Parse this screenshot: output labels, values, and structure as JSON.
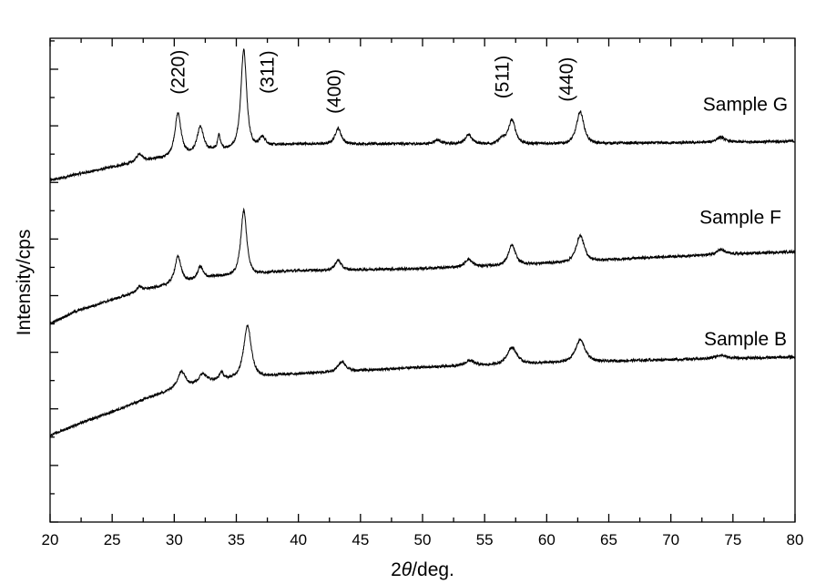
{
  "chart_data": {
    "type": "line",
    "title": "",
    "xlabel": {
      "prefix": "2",
      "symbol": "θ",
      "suffix": "/deg."
    },
    "ylabel": "Intensity/cps",
    "xlim": [
      20,
      80
    ],
    "ylim": [
      0,
      100
    ],
    "x_ticks": [
      20,
      25,
      30,
      35,
      40,
      45,
      50,
      55,
      60,
      65,
      70,
      75,
      80
    ],
    "y_tick_labels_shown": false,
    "grid": false,
    "series": [
      {
        "name": "Sample G",
        "baseline": [
          [
            20,
            70.6
          ],
          [
            22,
            71.8
          ],
          [
            25,
            73.4
          ],
          [
            28,
            75.0
          ],
          [
            30,
            75.9
          ],
          [
            33,
            77.2
          ],
          [
            35,
            77.8
          ],
          [
            40,
            78.2
          ],
          [
            50,
            78.2
          ],
          [
            60,
            78.3
          ],
          [
            70,
            78.4
          ],
          [
            80,
            78.7
          ]
        ],
        "peaks": [
          {
            "pos": 27.2,
            "height": 1.6,
            "width": 0.35
          },
          {
            "pos": 30.3,
            "height": 8.5,
            "width": 0.35
          },
          {
            "pos": 32.1,
            "height": 5.0,
            "width": 0.35
          },
          {
            "pos": 33.6,
            "height": 2.8,
            "width": 0.15
          },
          {
            "pos": 35.6,
            "height": 20.0,
            "width": 0.32
          },
          {
            "pos": 37.1,
            "height": 1.8,
            "width": 0.35
          },
          {
            "pos": 43.2,
            "height": 3.2,
            "width": 0.35
          },
          {
            "pos": 51.2,
            "height": 0.8,
            "width": 0.4
          },
          {
            "pos": 53.7,
            "height": 1.8,
            "width": 0.4
          },
          {
            "pos": 56.4,
            "height": 1.0,
            "width": 0.4
          },
          {
            "pos": 57.2,
            "height": 4.8,
            "width": 0.4
          },
          {
            "pos": 62.7,
            "height": 6.5,
            "width": 0.42
          },
          {
            "pos": 74.0,
            "height": 1.0,
            "width": 0.5
          }
        ]
      },
      {
        "name": "Sample F",
        "baseline": [
          [
            20,
            41.0
          ],
          [
            22,
            43.5
          ],
          [
            25,
            46.0
          ],
          [
            28,
            48.3
          ],
          [
            30,
            49.5
          ],
          [
            33,
            50.8
          ],
          [
            35,
            51.4
          ],
          [
            40,
            52.0
          ],
          [
            50,
            52.4
          ],
          [
            60,
            53.6
          ],
          [
            70,
            54.9
          ],
          [
            80,
            55.9
          ]
        ],
        "peaks": [
          {
            "pos": 27.2,
            "height": 1.0,
            "width": 0.35
          },
          {
            "pos": 30.3,
            "height": 5.3,
            "width": 0.35
          },
          {
            "pos": 32.1,
            "height": 2.5,
            "width": 0.3
          },
          {
            "pos": 35.6,
            "height": 13.0,
            "width": 0.33
          },
          {
            "pos": 43.2,
            "height": 2.0,
            "width": 0.35
          },
          {
            "pos": 53.7,
            "height": 1.5,
            "width": 0.4
          },
          {
            "pos": 57.2,
            "height": 4.0,
            "width": 0.4
          },
          {
            "pos": 62.7,
            "height": 5.3,
            "width": 0.45
          },
          {
            "pos": 74.0,
            "height": 1.0,
            "width": 0.5
          }
        ]
      },
      {
        "name": "Sample B",
        "baseline": [
          [
            20,
            17.9
          ],
          [
            22,
            20.0
          ],
          [
            25,
            22.8
          ],
          [
            28,
            25.8
          ],
          [
            30,
            27.6
          ],
          [
            33,
            29.4
          ],
          [
            35,
            30.1
          ],
          [
            40,
            30.7
          ],
          [
            50,
            32.0
          ],
          [
            60,
            33.0
          ],
          [
            70,
            33.6
          ],
          [
            80,
            34.1
          ]
        ],
        "peaks": [
          {
            "pos": 30.6,
            "height": 3.2,
            "width": 0.45
          },
          {
            "pos": 32.3,
            "height": 1.8,
            "width": 0.4
          },
          {
            "pos": 33.8,
            "height": 1.5,
            "width": 0.2
          },
          {
            "pos": 35.9,
            "height": 10.5,
            "width": 0.42
          },
          {
            "pos": 43.5,
            "height": 2.0,
            "width": 0.45
          },
          {
            "pos": 53.8,
            "height": 1.0,
            "width": 0.5
          },
          {
            "pos": 57.2,
            "height": 3.4,
            "width": 0.55
          },
          {
            "pos": 62.7,
            "height": 4.5,
            "width": 0.55
          },
          {
            "pos": 74.0,
            "height": 0.7,
            "width": 0.6
          }
        ]
      }
    ],
    "annotations": [
      {
        "text": "(220)",
        "x": 30.3,
        "y": 93
      },
      {
        "text": "(311)",
        "x": 37.5,
        "y": 93
      },
      {
        "text": "(400)",
        "x": 42.9,
        "y": 89
      },
      {
        "text": "(511)",
        "x": 56.4,
        "y": 92
      },
      {
        "text": "(440)",
        "x": 61.6,
        "y": 91.5
      }
    ],
    "series_labels": [
      {
        "text": "Sample G",
        "x": 76,
        "y": 85
      },
      {
        "text": "Sample F",
        "x": 75.6,
        "y": 61.7
      },
      {
        "text": "Sample B",
        "x": 76,
        "y": 36.5
      }
    ]
  }
}
